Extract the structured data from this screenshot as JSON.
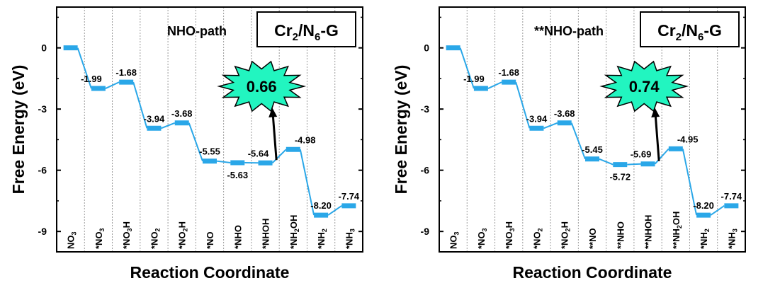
{
  "colors": {
    "line": "#2aa7e8",
    "burst": "#22f5c0",
    "frame": "#000000",
    "grid": "#9a9a9a"
  },
  "chart_data": [
    {
      "type": "line",
      "title": "NHO-path",
      "catalyst_label": {
        "base": "Cr",
        "sub1": "2",
        "mid": "/N",
        "sub2": "6",
        "tail": "-G"
      },
      "xlabel": "Reaction Coordinate",
      "ylabel": "Free Energy (eV)",
      "ylim": [
        -10.0,
        2.0
      ],
      "yticks": [
        "0",
        "-3",
        "-6",
        "-9"
      ],
      "ytick_values": [
        0,
        -3,
        -6,
        -9
      ],
      "grid": "vertical dotted",
      "categories": [
        {
          "base": "NO",
          "sub": "3",
          "tail": ""
        },
        {
          "base": "*NO",
          "sub": "3",
          "tail": ""
        },
        {
          "base": "*NO",
          "sub": "3",
          "tail": "H"
        },
        {
          "base": "*NO",
          "sub": "2",
          "tail": ""
        },
        {
          "base": "*NO",
          "sub": "2",
          "tail": "H"
        },
        {
          "base": "*NO",
          "sub": "",
          "tail": ""
        },
        {
          "base": "*NHO",
          "sub": "",
          "tail": ""
        },
        {
          "base": "*NHOH",
          "sub": "",
          "tail": ""
        },
        {
          "base": "*NH",
          "sub": "2",
          "tail": "OH"
        },
        {
          "base": "*NH",
          "sub": "2",
          "tail": ""
        },
        {
          "base": "*NH",
          "sub": "3",
          "tail": ""
        }
      ],
      "values": [
        0,
        -1.99,
        -1.68,
        -3.94,
        -3.68,
        -5.55,
        -5.63,
        -5.64,
        -4.98,
        -8.2,
        -7.74
      ],
      "value_labels": [
        "",
        "-1.99",
        "-1.68",
        "-3.94",
        "-3.68",
        "-5.55",
        "-5.63",
        "-5.64",
        "-4.98",
        "-8.20",
        "-7.74"
      ],
      "label_positions": [
        "",
        "left",
        "above",
        "above",
        "above",
        "above",
        "below",
        "left",
        "right",
        "above",
        "above"
      ],
      "highlight": {
        "value": "0.66",
        "from_index": 7,
        "to_index": 8
      }
    },
    {
      "type": "line",
      "title": "**NHO-path",
      "catalyst_label": {
        "base": "Cr",
        "sub1": "2",
        "mid": "/N",
        "sub2": "6",
        "tail": "-G"
      },
      "xlabel": "Reaction Coordinate",
      "ylabel": "Free Energy (eV)",
      "ylim": [
        -10.0,
        2.0
      ],
      "yticks": [
        "0",
        "-3",
        "-6",
        "-9"
      ],
      "ytick_values": [
        0,
        -3,
        -6,
        -9
      ],
      "grid": "vertical dotted",
      "categories": [
        {
          "base": "NO",
          "sub": "3",
          "tail": ""
        },
        {
          "base": "*NO",
          "sub": "3",
          "tail": ""
        },
        {
          "base": "*NO",
          "sub": "3",
          "tail": "H"
        },
        {
          "base": "*NO",
          "sub": "2",
          "tail": ""
        },
        {
          "base": "*NO",
          "sub": "2",
          "tail": "H"
        },
        {
          "base": "**NO",
          "sub": "",
          "tail": ""
        },
        {
          "base": "**NHO",
          "sub": "",
          "tail": ""
        },
        {
          "base": "**NHOH",
          "sub": "",
          "tail": ""
        },
        {
          "base": "**NH",
          "sub": "2",
          "tail": "OH"
        },
        {
          "base": "*NH",
          "sub": "2",
          "tail": ""
        },
        {
          "base": "*NH",
          "sub": "3",
          "tail": ""
        }
      ],
      "values": [
        0,
        -1.99,
        -1.68,
        -3.94,
        -3.68,
        -5.45,
        -5.72,
        -5.69,
        -4.95,
        -8.2,
        -7.74
      ],
      "value_labels": [
        "",
        "-1.99",
        "-1.68",
        "-3.94",
        "-3.68",
        "-5.45",
        "-5.72",
        "-5.69",
        "-4.95",
        "-8.20",
        "-7.74"
      ],
      "label_positions": [
        "",
        "left",
        "above",
        "above",
        "above",
        "above",
        "below",
        "left",
        "right",
        "above",
        "above"
      ],
      "highlight": {
        "value": "0.74",
        "from_index": 7,
        "to_index": 8
      }
    }
  ]
}
